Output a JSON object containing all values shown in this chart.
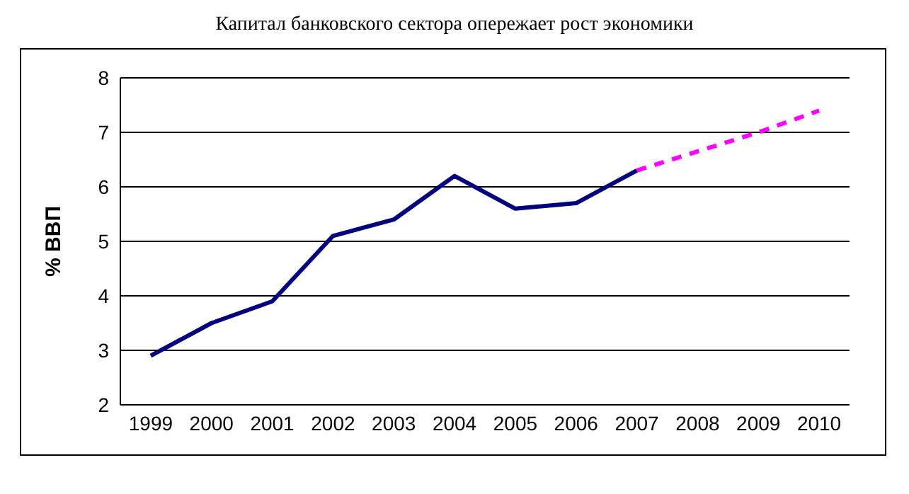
{
  "chart_data": {
    "type": "line",
    "title": "Капитал банковского сектора опережает рост экономики",
    "ylabel": "% ВВП",
    "categories": [
      "1999",
      "2000",
      "2001",
      "2002",
      "2003",
      "2004",
      "2005",
      "2006",
      "2007",
      "2008",
      "2009",
      "2010"
    ],
    "series": [
      {
        "color": "#000080",
        "line_style": "solid",
        "values": [
          2.9,
          3.5,
          3.9,
          5.1,
          5.4,
          6.2,
          5.6,
          5.7,
          6.3,
          null,
          null,
          null
        ]
      },
      {
        "color": "#ff00ff",
        "line_style": "dashed",
        "values": [
          null,
          null,
          null,
          null,
          null,
          null,
          null,
          null,
          6.3,
          6.65,
          7.0,
          7.4
        ]
      }
    ],
    "ylim": [
      2,
      8
    ],
    "yticks": [
      2,
      3,
      4,
      5,
      6,
      7,
      8
    ],
    "grid": "y",
    "legend": false,
    "marker": "none"
  }
}
